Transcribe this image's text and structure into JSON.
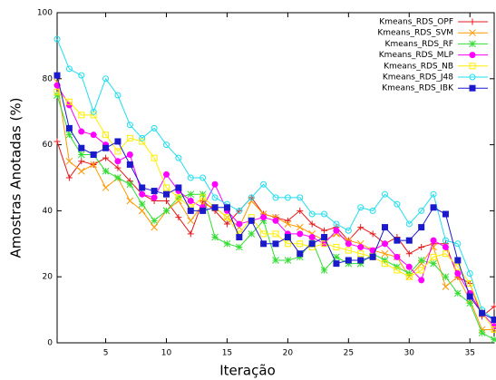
{
  "chart_data": {
    "type": "line",
    "x_label": "Iteração",
    "y_label": "Amostras Anotadas (%)",
    "x": [
      1,
      2,
      3,
      4,
      5,
      6,
      7,
      8,
      9,
      10,
      11,
      12,
      13,
      14,
      15,
      16,
      17,
      18,
      19,
      20,
      21,
      22,
      23,
      24,
      25,
      26,
      27,
      28,
      29,
      30,
      31,
      32,
      33,
      34,
      35,
      36,
      37
    ],
    "xlim": [
      1,
      37
    ],
    "xticks": [
      5,
      10,
      15,
      20,
      25,
      30,
      35
    ],
    "ylim": [
      0,
      100
    ],
    "yticks": [
      0,
      20,
      40,
      60,
      80,
      100
    ],
    "legend": "top-right",
    "series": [
      {
        "name": "Kmeans_RDS_OPF",
        "color": "#e41a1c",
        "marker": "plus",
        "values": [
          61,
          50,
          55,
          54,
          56,
          53,
          49,
          45,
          43,
          43,
          38,
          33,
          43,
          40,
          36,
          40,
          44,
          39,
          38,
          37,
          40,
          36,
          34,
          35,
          31,
          35,
          33,
          30,
          32,
          27,
          29,
          30,
          30,
          20,
          18,
          8,
          11
        ]
      },
      {
        "name": "Kmeans_RDS_SVM",
        "color": "#ff9900",
        "marker": "cross",
        "values": [
          79,
          55,
          52,
          54,
          47,
          50,
          43,
          40,
          35,
          40,
          43,
          37,
          42,
          41,
          38,
          35,
          43,
          39,
          38,
          36,
          35,
          33,
          31,
          33,
          31,
          30,
          28,
          27,
          26,
          20,
          24,
          29,
          17,
          20,
          13,
          4,
          4
        ]
      },
      {
        "name": "Kmeans_RDS_RF",
        "color": "#33dd33",
        "marker": "star",
        "values": [
          75,
          63,
          57,
          57,
          52,
          50,
          48,
          42,
          37,
          40,
          44,
          45,
          45,
          32,
          30,
          29,
          33,
          37,
          25,
          25,
          26,
          31,
          22,
          26,
          24,
          24,
          27,
          25,
          23,
          21,
          25,
          24,
          20,
          15,
          12,
          3,
          1
        ]
      },
      {
        "name": "Kmeans_RDS_MLP",
        "color": "#ff00ff",
        "marker": "dot",
        "values": [
          78,
          72,
          64,
          63,
          60,
          55,
          57,
          45,
          44,
          51,
          46,
          43,
          41,
          48,
          40,
          36,
          37,
          38,
          37,
          33,
          33,
          32,
          30,
          34,
          30,
          29,
          28,
          30,
          26,
          23,
          19,
          31,
          29,
          21,
          15,
          9,
          5
        ]
      },
      {
        "name": "Kmeans_RDS_NB",
        "color": "#ffee00",
        "marker": "square",
        "values": [
          76,
          73,
          69,
          69,
          63,
          58,
          62,
          61,
          56,
          47,
          44,
          41,
          44,
          41,
          38,
          33,
          38,
          33,
          33,
          30,
          30,
          29,
          30,
          29,
          28,
          27,
          26,
          24,
          22,
          20,
          22,
          26,
          27,
          23,
          18,
          9,
          4
        ]
      },
      {
        "name": "Kmeans_RDS_J48",
        "color": "#22ddee",
        "marker": "circle",
        "values": [
          92,
          83,
          81,
          70,
          80,
          75,
          66,
          62,
          65,
          60,
          56,
          50,
          50,
          44,
          42,
          40,
          44,
          48,
          44,
          44,
          44,
          39,
          39,
          36,
          34,
          41,
          40,
          45,
          42,
          36,
          40,
          45,
          31,
          30,
          21,
          10,
          7
        ]
      },
      {
        "name": "Kmeans_RDS_IBK",
        "color": "#1a1acc",
        "marker": "fsquare",
        "values": [
          81,
          65,
          59,
          57,
          59,
          61,
          54,
          47,
          46,
          45,
          47,
          40,
          40,
          41,
          41,
          32,
          37,
          30,
          30,
          32,
          27,
          30,
          32,
          24,
          25,
          25,
          26,
          35,
          31,
          31,
          35,
          41,
          39,
          25,
          14,
          9,
          7
        ]
      }
    ]
  }
}
